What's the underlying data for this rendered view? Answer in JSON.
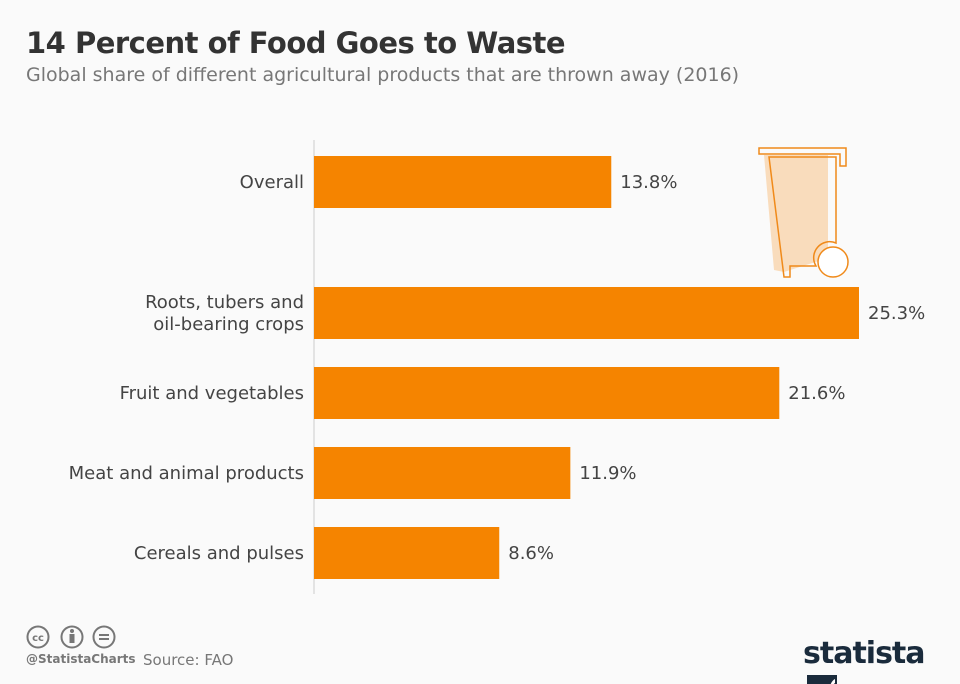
{
  "title": "14 Percent of Food Goes to Waste",
  "subtitle": "Global share of different agricultural products that are thrown away (2016)",
  "chart_data": {
    "type": "bar",
    "orientation": "horizontal",
    "categories": [
      "Overall",
      "Roots, tubers and oil-bearing crops",
      "Fruit and vegetables",
      "Meat and animal products",
      "Cereals and pulses"
    ],
    "category_lines": [
      [
        "Overall"
      ],
      [
        "Roots, tubers and",
        "oil-bearing crops"
      ],
      [
        "Fruit and vegetables"
      ],
      [
        "Meat and animal products"
      ],
      [
        "Cereals and pulses"
      ]
    ],
    "values": [
      13.8,
      25.3,
      21.6,
      11.9,
      8.6
    ],
    "labels": [
      "13.8%",
      "25.3%",
      "21.6%",
      "11.9%",
      "8.6%"
    ],
    "xlim": [
      0,
      25.3
    ],
    "grid": false,
    "bar_color": "#f58400"
  },
  "footer": {
    "handle": "@StatistaCharts",
    "source": "Source: FAO",
    "logo": "statista",
    "license_icons": [
      "cc-icon",
      "by-icon",
      "nd-icon"
    ]
  },
  "decoration": {
    "icon": "trash-bin-icon"
  }
}
